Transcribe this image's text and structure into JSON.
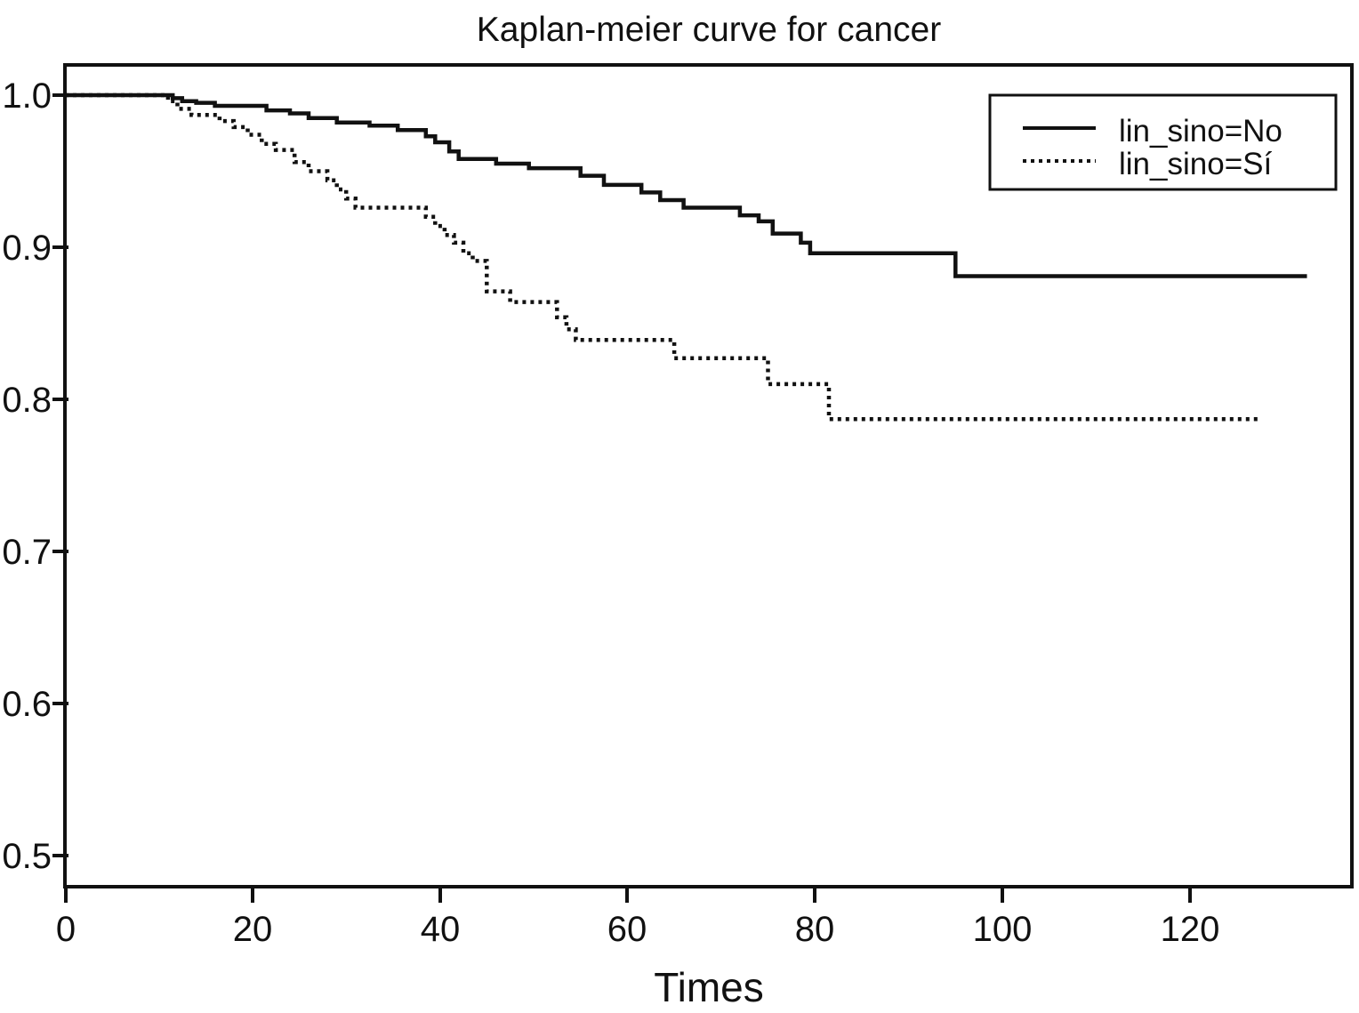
{
  "chart_data": {
    "type": "line",
    "subtype": "kaplan-meier-step",
    "title": "Kaplan-meier curve for cancer",
    "xlabel": "Times",
    "ylabel": "",
    "xlim": [
      0,
      137
    ],
    "ylim": [
      0.48,
      1.02
    ],
    "grid": false,
    "background_color": "#ffffff",
    "line_color": "#111111",
    "xticks": [
      0,
      20,
      40,
      60,
      80,
      100,
      120
    ],
    "yticks": [
      1.0,
      0.9,
      0.8,
      0.7,
      0.6,
      0.5
    ],
    "xtick_labels": [
      "0",
      "20",
      "40",
      "60",
      "80",
      "100",
      "120"
    ],
    "ytick_labels": [
      "1.0",
      "0.9",
      "0.8",
      "0.7",
      "0.6",
      "0.5"
    ],
    "legend": {
      "position": "top-right",
      "entries": [
        {
          "label": "lin_sino=No",
          "line_style": "solid"
        },
        {
          "label": "lin_sino=Sí",
          "line_style": "dotted"
        }
      ]
    },
    "series": [
      {
        "name": "lin_sino=No",
        "line_style": "solid",
        "step_mode": "step-after",
        "points": [
          [
            0,
            1.0
          ],
          [
            11.5,
            0.998
          ],
          [
            12.5,
            0.996
          ],
          [
            14,
            0.995
          ],
          [
            16,
            0.993
          ],
          [
            21.5,
            0.99
          ],
          [
            24,
            0.988
          ],
          [
            26,
            0.985
          ],
          [
            29,
            0.982
          ],
          [
            32.5,
            0.98
          ],
          [
            35.5,
            0.977
          ],
          [
            38.5,
            0.973
          ],
          [
            39.5,
            0.969
          ],
          [
            41,
            0.963
          ],
          [
            42,
            0.958
          ],
          [
            46,
            0.955
          ],
          [
            49.5,
            0.952
          ],
          [
            55,
            0.947
          ],
          [
            57.5,
            0.941
          ],
          [
            61.5,
            0.936
          ],
          [
            63.5,
            0.931
          ],
          [
            66,
            0.926
          ],
          [
            72,
            0.921
          ],
          [
            74,
            0.917
          ],
          [
            75.5,
            0.909
          ],
          [
            78.5,
            0.903
          ],
          [
            79.5,
            0.896
          ],
          [
            95,
            0.881
          ],
          [
            132.5,
            0.881
          ]
        ]
      },
      {
        "name": "lin_sino=Sí",
        "line_style": "dotted",
        "step_mode": "step-after",
        "points": [
          [
            0,
            1.0
          ],
          [
            11,
            0.996
          ],
          [
            12,
            0.991
          ],
          [
            13.5,
            0.987
          ],
          [
            16.5,
            0.983
          ],
          [
            18,
            0.979
          ],
          [
            19.5,
            0.974
          ],
          [
            21,
            0.968
          ],
          [
            22.5,
            0.964
          ],
          [
            24.5,
            0.956
          ],
          [
            26,
            0.95
          ],
          [
            28,
            0.944
          ],
          [
            29,
            0.938
          ],
          [
            30,
            0.932
          ],
          [
            31,
            0.926
          ],
          [
            38.5,
            0.92
          ],
          [
            39.5,
            0.914
          ],
          [
            40.5,
            0.908
          ],
          [
            41.5,
            0.903
          ],
          [
            42.5,
            0.896
          ],
          [
            43.5,
            0.891
          ],
          [
            45,
            0.871
          ],
          [
            47.5,
            0.864
          ],
          [
            52.5,
            0.854
          ],
          [
            53.5,
            0.846
          ],
          [
            54.5,
            0.839
          ],
          [
            65,
            0.827
          ],
          [
            75,
            0.81
          ],
          [
            81.5,
            0.787
          ],
          [
            127.5,
            0.787
          ]
        ]
      }
    ]
  }
}
